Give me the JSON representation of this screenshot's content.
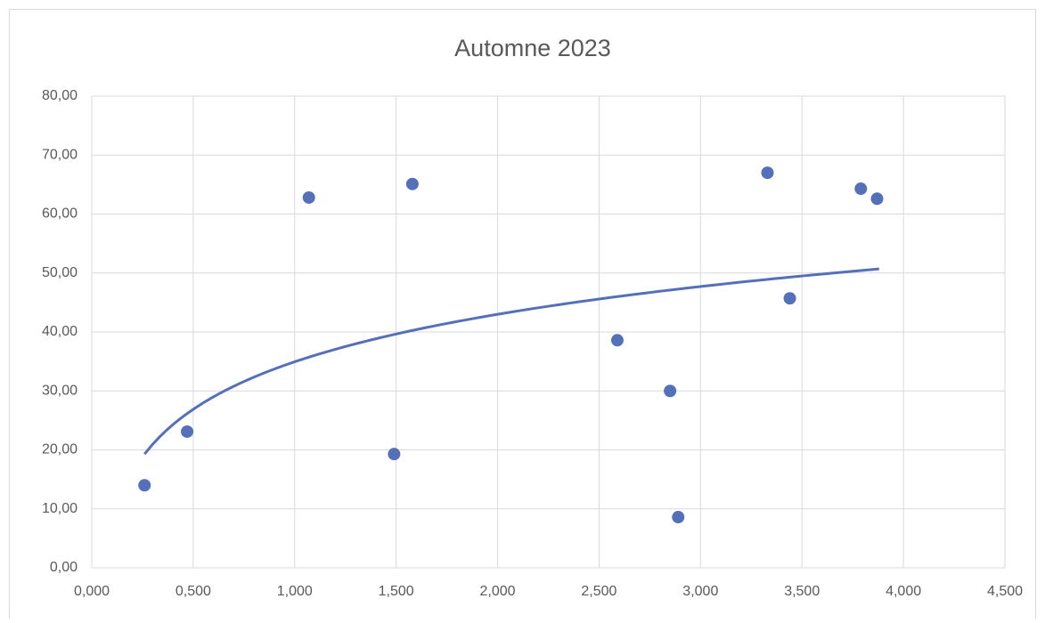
{
  "chart_data": {
    "type": "scatter",
    "title": "Automne 2023",
    "color": "#5470b8",
    "grid": true,
    "x": [
      0.26,
      0.47,
      1.07,
      1.49,
      1.58,
      2.59,
      2.85,
      2.89,
      3.33,
      3.44,
      3.79,
      3.87
    ],
    "values": [
      14.0,
      23.1,
      62.8,
      19.3,
      65.1,
      38.6,
      30.0,
      8.6,
      67.0,
      45.7,
      64.3,
      62.6
    ],
    "trendline": {
      "kind": "logarithmic",
      "coefficients": [
        11.62,
        34.94
      ],
      "xrange": [
        0.26,
        3.88
      ]
    },
    "xlim": [
      0,
      4.5
    ],
    "ylim": [
      0,
      80
    ],
    "xticks": [
      {
        "value": 0,
        "label": "0,000"
      },
      {
        "value": 0.5,
        "label": "0,500"
      },
      {
        "value": 1,
        "label": "1,000"
      },
      {
        "value": 1.5,
        "label": "1,500"
      },
      {
        "value": 2,
        "label": "2,000"
      },
      {
        "value": 2.5,
        "label": "2,500"
      },
      {
        "value": 3,
        "label": "3,000"
      },
      {
        "value": 3.5,
        "label": "3,500"
      },
      {
        "value": 4,
        "label": "4,000"
      },
      {
        "value": 4.5,
        "label": "4,500"
      }
    ],
    "yticks": [
      {
        "value": 0,
        "label": "0,00"
      },
      {
        "value": 10,
        "label": "10,00"
      },
      {
        "value": 20,
        "label": "20,00"
      },
      {
        "value": 30,
        "label": "30,00"
      },
      {
        "value": 40,
        "label": "40,00"
      },
      {
        "value": 50,
        "label": "50,00"
      },
      {
        "value": 60,
        "label": "60,00"
      },
      {
        "value": 70,
        "label": "70,00"
      },
      {
        "value": 80,
        "label": "80,00"
      }
    ]
  }
}
